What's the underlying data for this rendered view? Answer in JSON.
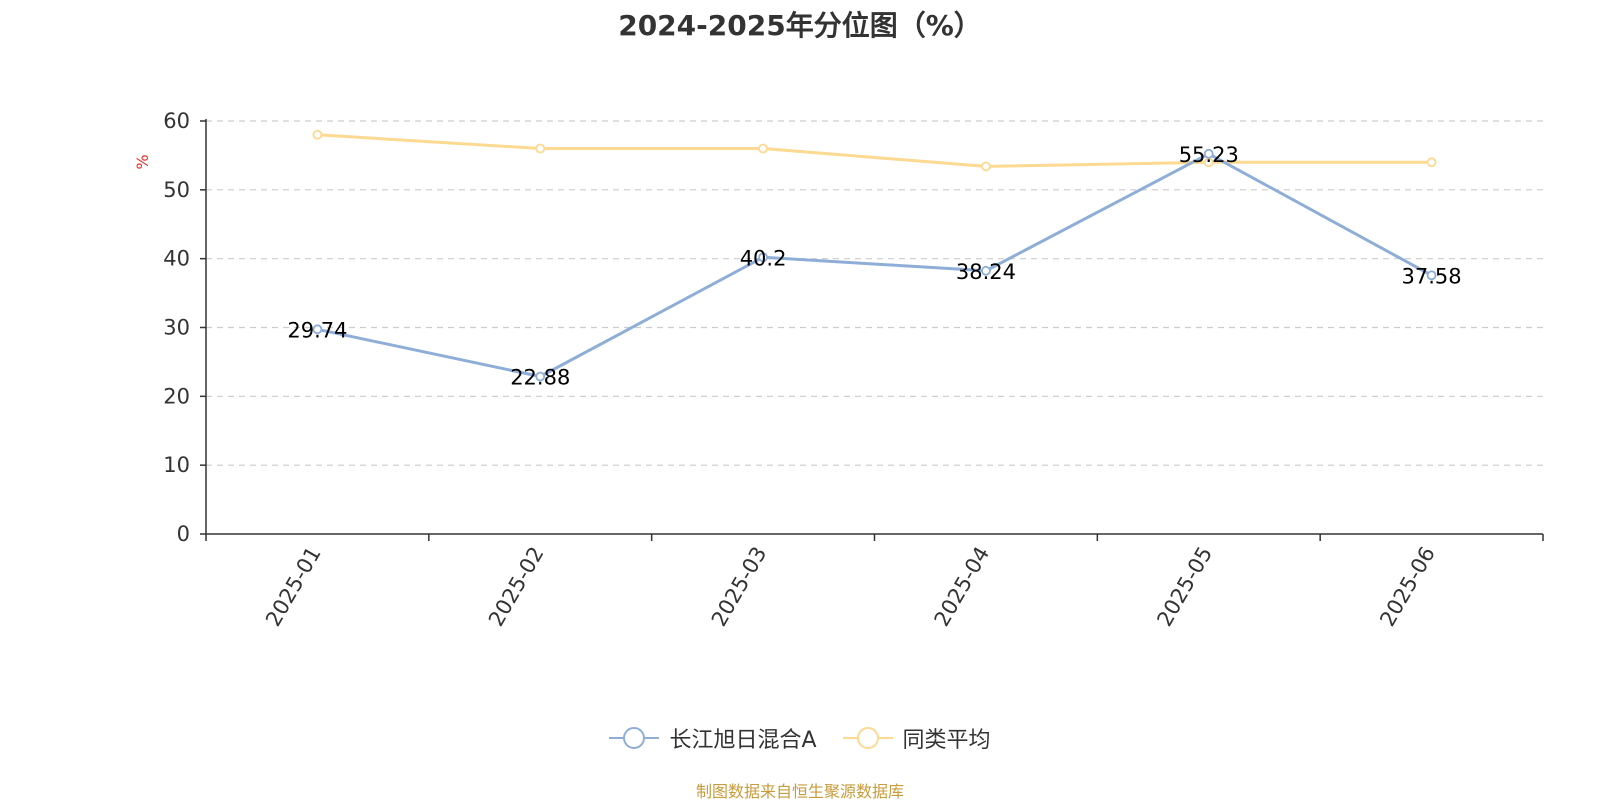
{
  "chart_data": {
    "type": "line",
    "title": "2024-2025年分位图（%）",
    "ylabel": "%",
    "xlabel": "",
    "categories": [
      "2025-01",
      "2025-02",
      "2025-03",
      "2025-04",
      "2025-05",
      "2025-06"
    ],
    "ylim": [
      0,
      60
    ],
    "yticks": [
      0,
      10,
      20,
      30,
      40,
      50,
      60
    ],
    "grid": true,
    "legend_position": "bottom",
    "series": [
      {
        "name": "长江旭日混合A",
        "color": "#8eaed8",
        "values": [
          29.74,
          22.88,
          40.2,
          38.24,
          55.23,
          37.58
        ],
        "labels": [
          "29.74",
          "22.88",
          "40.2",
          "38.24",
          "55.23",
          "37.58"
        ],
        "show_labels": true
      },
      {
        "name": "同类平均",
        "color": "#fdd992",
        "values": [
          58.0,
          56.0,
          56.0,
          53.4,
          54.0,
          54.0
        ],
        "show_labels": false
      }
    ]
  },
  "source_note": "制图数据来自恒生聚源数据库"
}
